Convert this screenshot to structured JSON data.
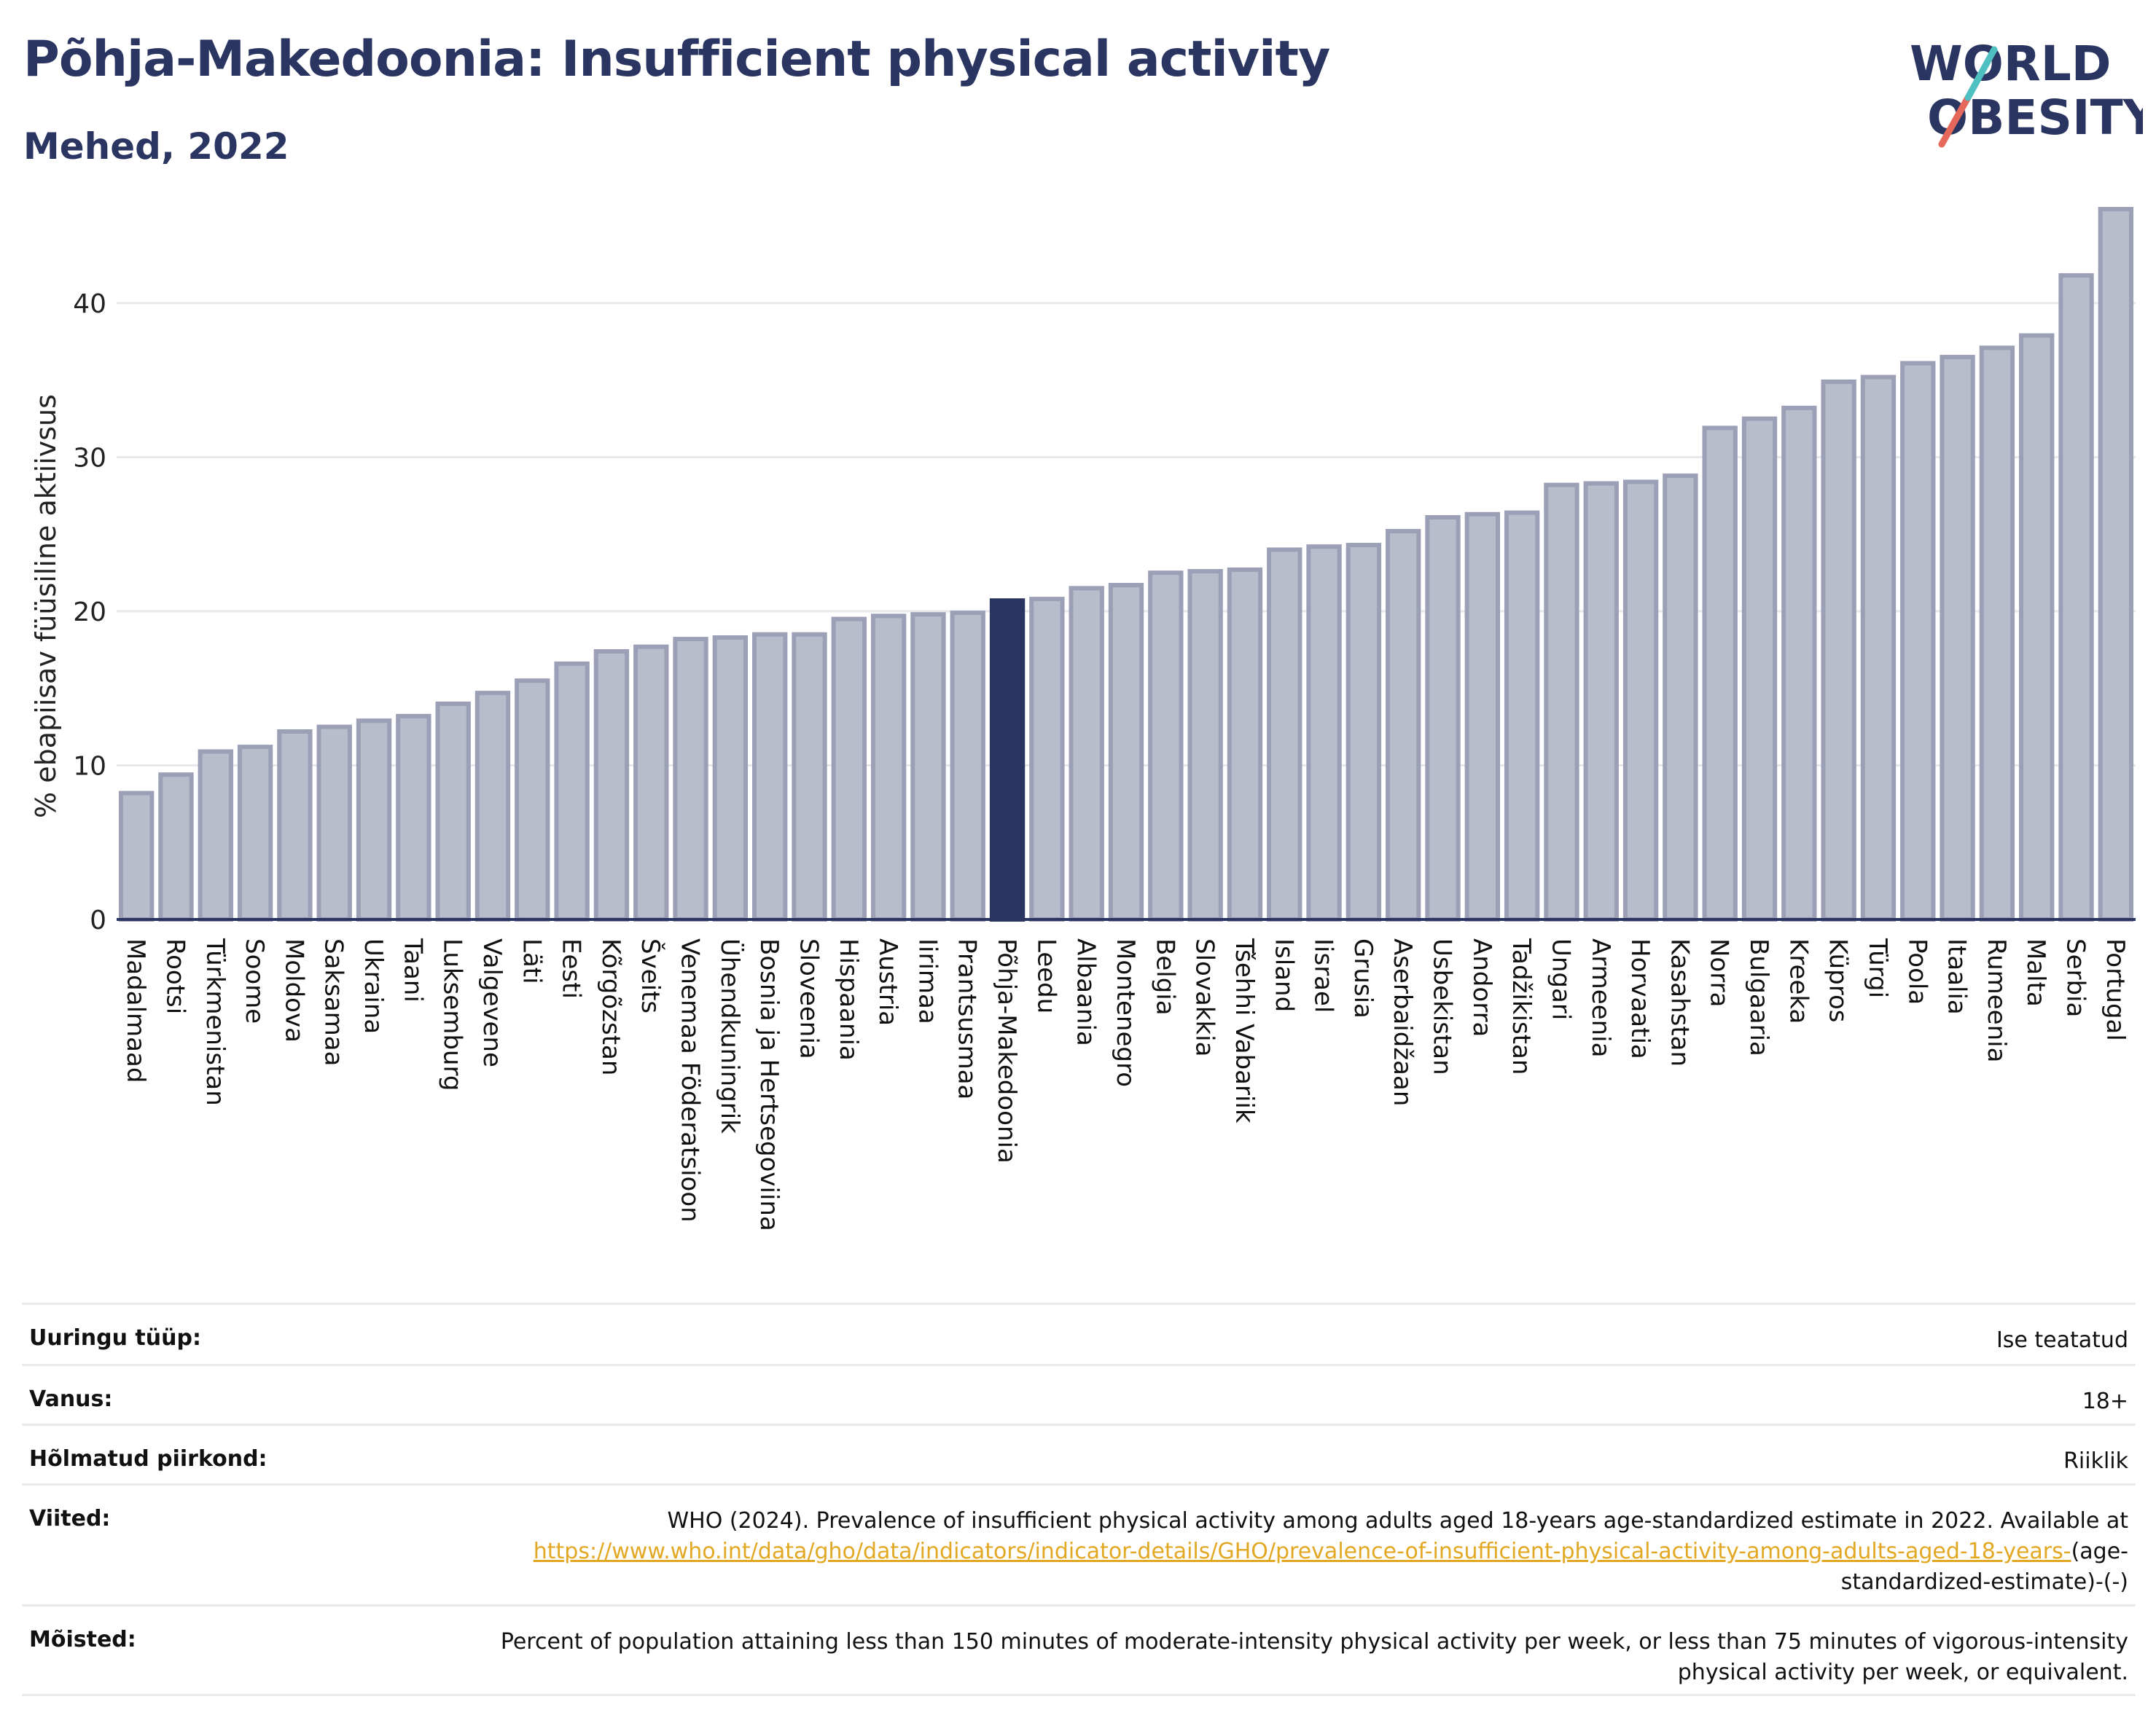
{
  "title": "Põhja-Makedoonia: Insufficient physical activity",
  "subtitle": "Mehed, 2022",
  "logo": {
    "line1": "WORLD",
    "line2": "OBESITY"
  },
  "colors": {
    "bar": "#b8bccb",
    "bar_stroke": "#9ba0b6",
    "highlight": "#2b3561",
    "text_dark": "#2b3561",
    "link": "#e3a823"
  },
  "chart_data": {
    "type": "bar",
    "ylabel": "% ebapiisav füüsiline aktiivsus",
    "ylim": [
      0,
      47
    ],
    "yticks": [
      0,
      10,
      20,
      30,
      40
    ],
    "grid": true,
    "highlight": "Põhja-Makedoonia",
    "categories": [
      "Madalmaad",
      "Rootsi",
      "Türkmenistan",
      "Soome",
      "Moldova",
      "Saksamaa",
      "Ukraina",
      "Taani",
      "Luksemburg",
      "Valgevene",
      "Läti",
      "Eesti",
      "Kõrgõzstan",
      "Šveits",
      "Venemaa Föderatsioon",
      "Ühendkuningrik",
      "Bosnia ja Hertsegoviina",
      "Sloveenia",
      "Hispaania",
      "Austria",
      "Iirimaa",
      "Prantsusmaa",
      "Põhja-Makedoonia",
      "Leedu",
      "Albaania",
      "Montenegro",
      "Belgia",
      "Slovakkia",
      "Tšehhi Vabariik",
      "Island",
      "Iisrael",
      "Grusia",
      "Aserbaidžaan",
      "Usbekistan",
      "Andorra",
      "Tadžikistan",
      "Ungari",
      "Armeenia",
      "Horvaatia",
      "Kasahstan",
      "Norra",
      "Bulgaaria",
      "Kreeka",
      "Küpros",
      "Türgi",
      "Poola",
      "Itaalia",
      "Rumeenia",
      "Malta",
      "Serbia",
      "Portugal"
    ],
    "values": [
      8.2,
      9.4,
      10.9,
      11.2,
      12.2,
      12.5,
      12.9,
      13.2,
      14.0,
      14.7,
      15.5,
      16.6,
      17.4,
      17.7,
      18.2,
      18.3,
      18.5,
      18.5,
      19.5,
      19.7,
      19.8,
      19.9,
      20.7,
      20.8,
      21.5,
      21.7,
      22.5,
      22.6,
      22.7,
      24.0,
      24.2,
      24.3,
      25.2,
      26.1,
      26.3,
      26.4,
      28.2,
      28.3,
      28.4,
      28.8,
      31.9,
      32.5,
      33.2,
      34.9,
      35.2,
      36.1,
      36.5,
      37.1,
      37.9,
      41.8,
      46.1
    ]
  },
  "info": {
    "survey_type": {
      "label": "Uuringu tüüp:",
      "value": "Ise teatatud"
    },
    "age": {
      "label": "Vanus:",
      "value": "18+"
    },
    "area": {
      "label": "Hõlmatud piirkond:",
      "value": "Riiklik"
    },
    "references": {
      "label": "Viited:",
      "text": "WHO (2024). Prevalence of insufficient physical activity among adults aged 18-years age-standardized estimate in 2022. Available at",
      "link": "https://www.who.int/data/gho/data/indicators/indicator-details/GHO/prevalence-of-insufficient-physical-activity-among-adults-aged-18-years-",
      "suffix": "(age-standardized-estimate)-(-)"
    },
    "definitions": {
      "label": "Mõisted:",
      "value": "Percent of population attaining less than 150 minutes of moderate-intensity physical activity per week, or less than 75 minutes of vigorous-intensity physical activity per week, or equivalent."
    }
  }
}
